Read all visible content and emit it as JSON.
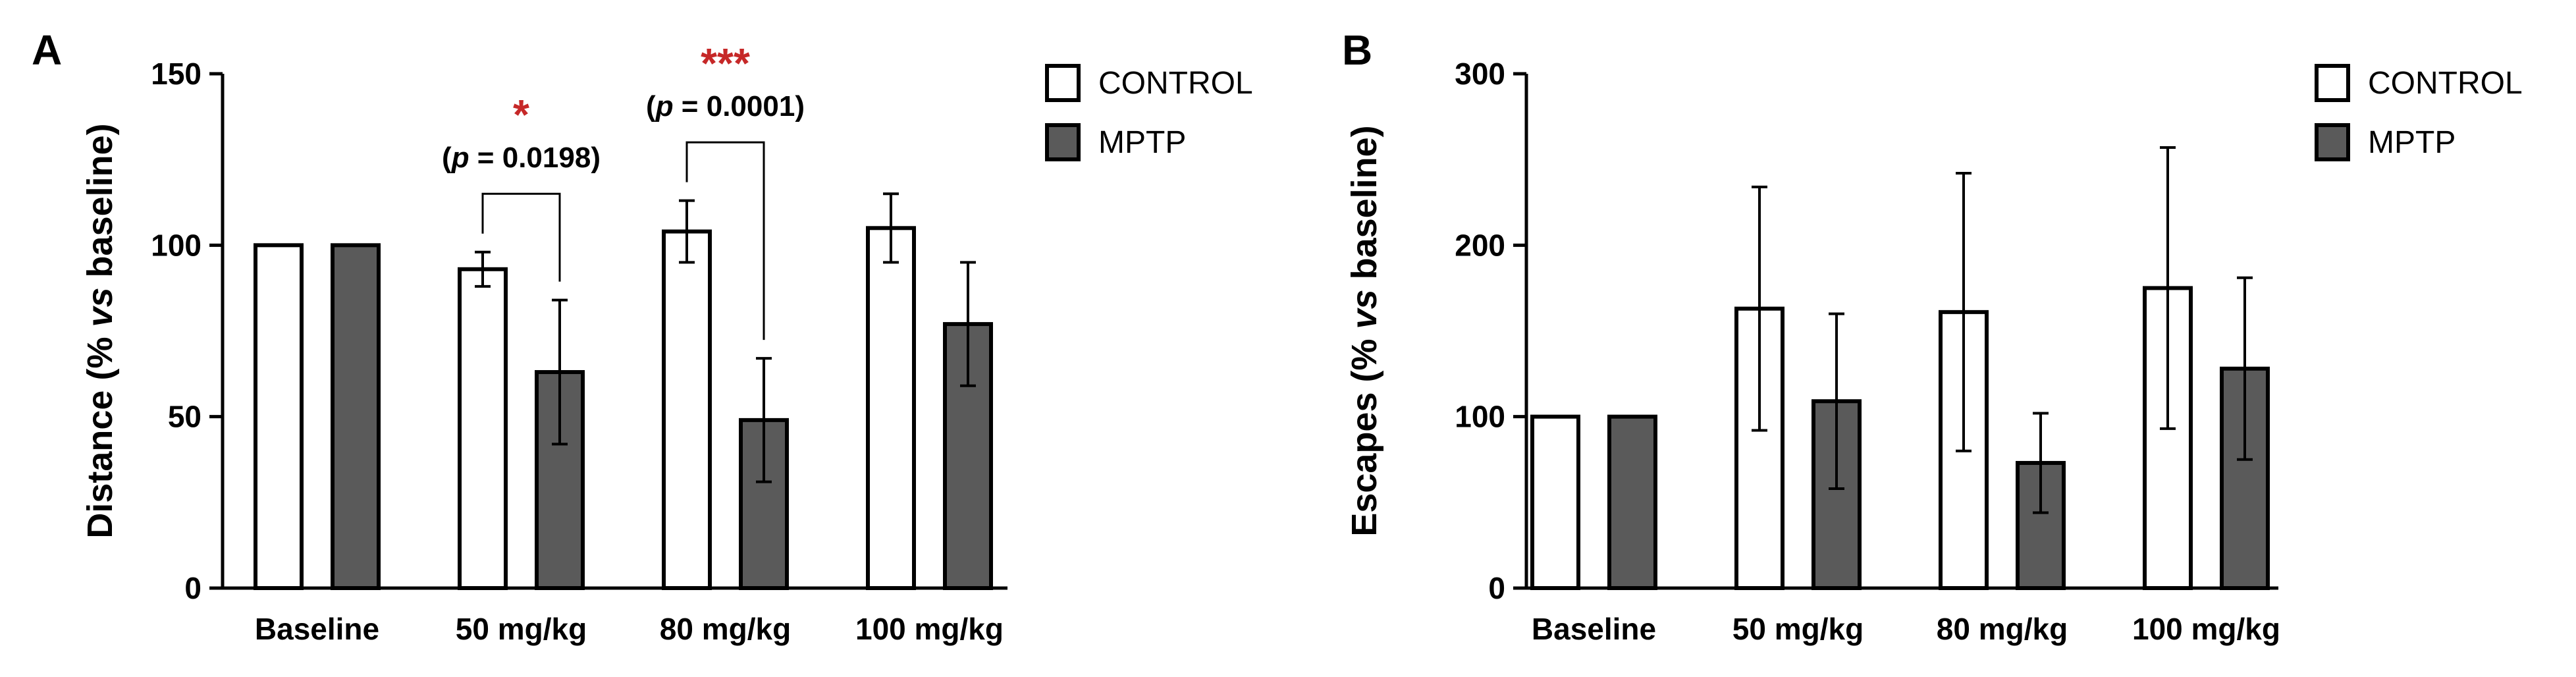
{
  "chart_data": [
    {
      "panel": "A",
      "type": "bar",
      "categories": [
        "Baseline",
        "50 mg/kg",
        "80 mg/kg",
        "100 mg/kg"
      ],
      "ylabel_prefix": "Distance (% ",
      "ylabel_italic": "vs",
      "ylabel_suffix": " baseline)",
      "ylim": [
        0,
        150
      ],
      "yticks": [
        0,
        50,
        100,
        150
      ],
      "series": [
        {
          "name": "CONTROL",
          "fill": "#ffffff",
          "values": [
            100,
            93,
            104,
            105
          ],
          "errors": [
            0,
            5,
            9,
            10
          ]
        },
        {
          "name": "MPTP",
          "fill": "#5a5a5a",
          "values": [
            100,
            63,
            49,
            77
          ],
          "errors": [
            0,
            21,
            18,
            18
          ]
        }
      ],
      "annotations": [
        {
          "category_index": 1,
          "stars": "*",
          "p_label": "p",
          "p_text": " = 0.0198",
          "bracket_top": 115
        },
        {
          "category_index": 2,
          "stars": "***",
          "p_label": "p",
          "p_text": " = 0.0001",
          "bracket_top": 130
        }
      ]
    },
    {
      "panel": "B",
      "type": "bar",
      "categories": [
        "Baseline",
        "50 mg/kg",
        "80 mg/kg",
        "100 mg/kg"
      ],
      "ylabel_prefix": "Escapes (% ",
      "ylabel_italic": "vs",
      "ylabel_suffix": " baseline)",
      "ylim": [
        0,
        300
      ],
      "yticks": [
        0,
        100,
        200,
        300
      ],
      "series": [
        {
          "name": "CONTROL",
          "fill": "#ffffff",
          "values": [
            100,
            163,
            161,
            175
          ],
          "errors": [
            0,
            71,
            81,
            82
          ]
        },
        {
          "name": "MPTP",
          "fill": "#5a5a5a",
          "values": [
            100,
            109,
            73,
            128
          ],
          "errors": [
            0,
            51,
            29,
            53
          ]
        }
      ],
      "annotations": []
    }
  ],
  "colors": {
    "control": "#ffffff",
    "mptp": "#5a5a5a",
    "significance": "#c62828",
    "axis": "#000000"
  }
}
